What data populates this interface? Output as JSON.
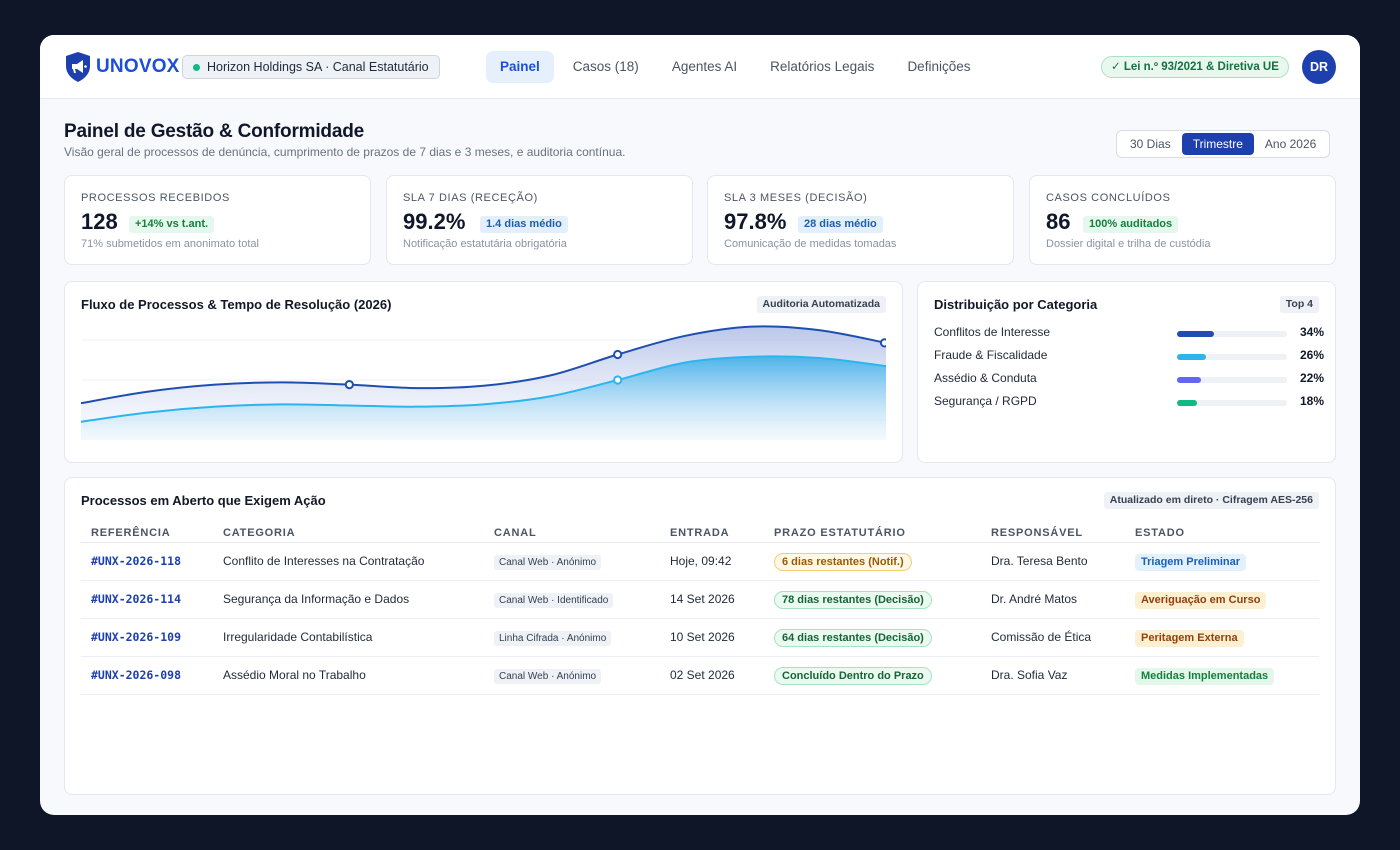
{
  "header": {
    "brand": "UNOVOX",
    "organization": "Horizon Holdings SA · Canal Estatutário",
    "nav": [
      "Painel",
      "Casos (18)",
      "Agentes AI",
      "Relatórios Legais",
      "Definições"
    ],
    "compliance_badge": "✓ Lei n.º 93/2021 & Diretiva UE",
    "user_initials": "DR"
  },
  "page": {
    "title": "Painel de Gestão & Conformidade",
    "subtitle": "Visão geral de processos de denúncia, cumprimento de prazos de 7 dias e 3 meses, e auditoria contínua.",
    "ranges": [
      "30 Dias",
      "Trimestre",
      "Ano 2026"
    ],
    "active_range": "Trimestre"
  },
  "kpis": [
    {
      "label": "Processos Recebidos",
      "value": "128",
      "badge": "+14% vs t.ant.",
      "note": "71% submetidos em anonimato total"
    },
    {
      "label": "SLA 7 Dias (Receção)",
      "value": "99.2%",
      "badge": "1.4 dias médio",
      "note": "Notificação estatutária obrigatória"
    },
    {
      "label": "SLA 3 Meses (Decisão)",
      "value": "97.8%",
      "badge": "28 dias médio",
      "note": "Comunicação de medidas tomadas"
    },
    {
      "label": "Casos Concluídos",
      "value": "86",
      "badge": "100% auditados",
      "note": "Dossier digital e trilha de custódia"
    }
  ],
  "flow_panel": {
    "title": "Fluxo de Processos & Tempo de Resolução (2026)",
    "tag": "Auditoria Automatizada"
  },
  "chart_data": {
    "type": "area",
    "title": "Fluxo de Processos & Tempo de Resolução (2026)",
    "x": [
      0,
      1,
      2,
      3,
      4,
      5,
      6,
      7,
      8,
      9,
      10,
      11,
      12
    ],
    "xlabel": "",
    "ylabel": "",
    "ylim": [
      0,
      100
    ],
    "grid": true,
    "series": [
      {
        "values": [
          30,
          40,
          46,
          48,
          46,
          43,
          45,
          54,
          72,
          88,
          96,
          93,
          82
        ],
        "color": "#1e4fb0",
        "markers": [
          4,
          8,
          12
        ]
      },
      {
        "values": [
          14,
          22,
          27,
          29,
          28,
          27,
          29,
          36,
          50,
          65,
          70,
          69,
          62
        ],
        "color": "#2bb5ec",
        "markers": [
          8
        ]
      }
    ]
  },
  "distribution": {
    "title": "Distribuição por Categoria",
    "tag": "Top 4",
    "items": [
      {
        "name": "Conflitos de Interesse",
        "value": 34,
        "label": "34%",
        "color": "#1e4fb0"
      },
      {
        "name": "Fraude & Fiscalidade",
        "value": 26,
        "label": "26%",
        "color": "#2bb5ec"
      },
      {
        "name": "Assédio & Conduta",
        "value": 22,
        "label": "22%",
        "color": "#6366f1"
      },
      {
        "name": "Segurança / RGPD",
        "value": 18,
        "label": "18%",
        "color": "#10b981"
      }
    ]
  },
  "table": {
    "title": "Processos em Aberto que Exigem Ação",
    "tag": "Atualizado em direto · Cifragem AES-256",
    "columns": [
      "Referência",
      "Categoria",
      "Canal",
      "Entrada",
      "Prazo Estatutário",
      "Responsável",
      "Estado"
    ],
    "rows": [
      {
        "ref": "#UNX-2026-118",
        "categoria": "Conflito de Interesses na Contratação",
        "canal": "Canal Web · Anónimo",
        "entrada": "Hoje, 09:42",
        "prazo": "6 dias restantes (Notif.)",
        "responsavel": "Dra. Teresa Bento",
        "estado": "Triagem Preliminar"
      },
      {
        "ref": "#UNX-2026-114",
        "categoria": "Segurança da Informação e Dados",
        "canal": "Canal Web · Identificado",
        "entrada": "14 Set 2026",
        "prazo": "78 dias restantes (Decisão)",
        "responsavel": "Dr. André Matos",
        "estado": "Averiguação em Curso"
      },
      {
        "ref": "#UNX-2026-109",
        "categoria": "Irregularidade Contabilística",
        "canal": "Linha Cifrada · Anónimo",
        "entrada": "10 Set 2026",
        "prazo": "64 dias restantes (Decisão)",
        "responsavel": "Comissão de Ética",
        "estado": "Peritagem Externa"
      },
      {
        "ref": "#UNX-2026-098",
        "categoria": "Assédio Moral no Trabalho",
        "canal": "Canal Web · Anónimo",
        "entrada": "02 Set 2026",
        "prazo": "Concluído Dentro do Prazo",
        "responsavel": "Dra. Sofia Vaz",
        "estado": "Medidas Implementadas"
      }
    ]
  }
}
